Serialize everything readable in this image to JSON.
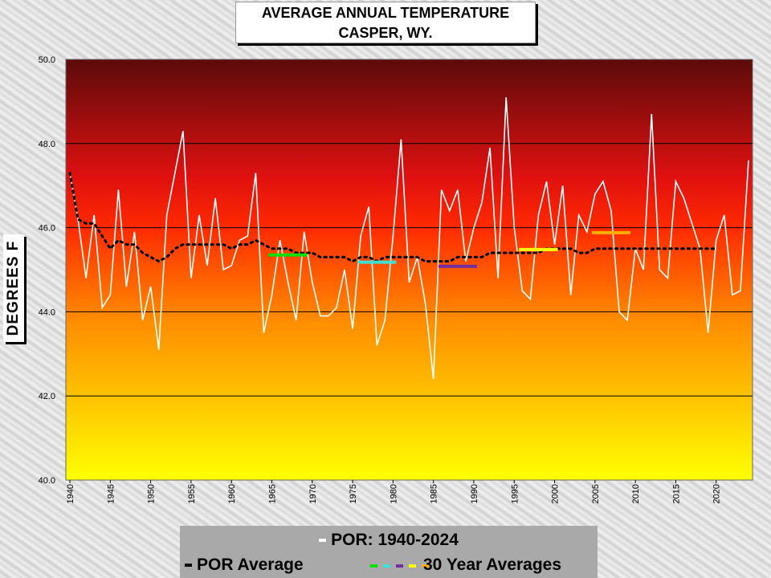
{
  "title_line1": "AVERAGE  ANNUAL  TEMPERATURE",
  "title_line2": "CASPER,  WY.",
  "ylabel": "DEGREES  F",
  "legend": {
    "por_text": "POR: 1940-2024",
    "por_avg_text": "POR Average",
    "avg30_text": "30 Year Averages",
    "avg30_colors": [
      "#00e000",
      "#40e0d0",
      "#7030a0",
      "#ffff00",
      "#ffb000"
    ]
  },
  "chart_data": {
    "type": "line",
    "title": "AVERAGE  ANNUAL  TEMPERATURE\nCASPER,  WY.",
    "ylabel": "DEGREES  F",
    "ylim": [
      40.0,
      50.0
    ],
    "yticks": [
      "40.0",
      "42.0",
      "44.0",
      "46.0",
      "48.0",
      "50.0"
    ],
    "xlim": [
      1940,
      2024
    ],
    "xticks": [
      "1940",
      "1945",
      "1950",
      "1955",
      "1960",
      "1965",
      "1970",
      "1975",
      "1980",
      "1985",
      "1990",
      "1995",
      "2000",
      "2005",
      "2010",
      "2015",
      "2020"
    ],
    "grid": true,
    "background_gradient": [
      "#5c0b0b",
      "#ff1a00",
      "#ff9a00",
      "#ffff00"
    ],
    "annual_series": {
      "color": "#ffffff",
      "years": [
        1940,
        1941,
        1942,
        1943,
        1944,
        1945,
        1946,
        1947,
        1948,
        1949,
        1950,
        1951,
        1952,
        1953,
        1954,
        1955,
        1956,
        1957,
        1958,
        1959,
        1960,
        1961,
        1962,
        1963,
        1964,
        1965,
        1966,
        1967,
        1968,
        1969,
        1970,
        1971,
        1972,
        1973,
        1974,
        1975,
        1976,
        1977,
        1978,
        1979,
        1980,
        1981,
        1982,
        1983,
        1984,
        1985,
        1986,
        1987,
        1988,
        1989,
        1990,
        1991,
        1992,
        1993,
        1994,
        1995,
        1996,
        1997,
        1998,
        1999,
        2000,
        2001,
        2002,
        2003,
        2004,
        2005,
        2006,
        2007,
        2008,
        2009,
        2010,
        2011,
        2012,
        2013,
        2014,
        2015,
        2016,
        2017,
        2018,
        2019,
        2020,
        2021,
        2022,
        2023,
        2024
      ],
      "values": [
        47.3,
        46.2,
        44.8,
        46.3,
        44.1,
        44.4,
        46.9,
        44.6,
        45.9,
        43.8,
        44.6,
        43.1,
        46.3,
        47.3,
        48.3,
        44.8,
        46.3,
        45.1,
        46.7,
        45.0,
        45.1,
        45.7,
        45.8,
        47.3,
        43.5,
        44.4,
        45.7,
        44.7,
        43.8,
        45.9,
        44.7,
        43.9,
        43.9,
        44.1,
        45.0,
        43.6,
        45.8,
        46.5,
        43.2,
        43.8,
        45.8,
        48.1,
        44.7,
        45.3,
        44.2,
        42.4,
        46.9,
        46.4,
        46.9,
        45.2,
        46.0,
        46.6,
        47.9,
        44.8,
        49.1,
        46.0,
        44.5,
        44.3,
        46.3,
        47.1,
        45.6,
        47.0,
        44.4,
        46.3,
        45.9,
        46.8,
        47.1,
        46.4,
        44.0,
        43.8,
        45.5,
        45.0,
        48.7,
        45.0,
        44.8,
        47.1,
        46.7,
        46.1,
        45.5,
        43.5,
        45.7,
        46.3,
        44.4,
        44.5,
        47.6
      ]
    },
    "por_average_series": {
      "color": "#000000",
      "style": "dotted",
      "years": [
        1940,
        1941,
        1942,
        1943,
        1944,
        1945,
        1946,
        1947,
        1948,
        1949,
        1950,
        1951,
        1952,
        1953,
        1954,
        1955,
        1956,
        1957,
        1958,
        1959,
        1960,
        1961,
        1962,
        1963,
        1964,
        1965,
        1966,
        1967,
        1968,
        1969,
        1970,
        1971,
        1972,
        1973,
        1974,
        1975,
        1976,
        1977,
        1978,
        1979,
        1980,
        1981,
        1982,
        1983,
        1984,
        1985,
        1986,
        1987,
        1988,
        1989,
        1990,
        1991,
        1992,
        1993,
        1994,
        1995,
        1996,
        1997,
        1998,
        1999,
        2000,
        2001,
        2002,
        2003,
        2004,
        2005,
        2006,
        2007,
        2008,
        2009,
        2010,
        2011,
        2012,
        2013,
        2014,
        2015,
        2016,
        2017,
        2018,
        2019,
        2020
      ],
      "values": [
        47.3,
        46.2,
        46.1,
        46.1,
        45.8,
        45.5,
        45.7,
        45.6,
        45.6,
        45.4,
        45.3,
        45.2,
        45.3,
        45.5,
        45.6,
        45.6,
        45.6,
        45.6,
        45.6,
        45.6,
        45.5,
        45.6,
        45.6,
        45.7,
        45.6,
        45.5,
        45.5,
        45.5,
        45.4,
        45.4,
        45.4,
        45.3,
        45.3,
        45.3,
        45.3,
        45.2,
        45.3,
        45.3,
        45.2,
        45.3,
        45.3,
        45.3,
        45.3,
        45.3,
        45.2,
        45.2,
        45.2,
        45.2,
        45.3,
        45.3,
        45.3,
        45.3,
        45.4,
        45.4,
        45.4,
        45.4,
        45.4,
        45.4,
        45.4,
        45.5,
        45.5,
        45.5,
        45.5,
        45.4,
        45.4,
        45.5,
        45.5,
        45.5,
        45.5,
        45.5,
        45.5,
        45.5,
        45.5,
        45.5,
        45.5,
        45.5,
        45.5,
        45.5,
        45.5,
        45.5,
        45.5
      ]
    },
    "thirty_year_averages": [
      {
        "start": 1965,
        "end": 1969,
        "value": 45.35,
        "color": "#00e000"
      },
      {
        "start": 1976,
        "end": 1980,
        "value": 45.18,
        "color": "#40e0d0"
      },
      {
        "start": 1986,
        "end": 1990,
        "value": 45.08,
        "color": "#7030a0"
      },
      {
        "start": 1996,
        "end": 2000,
        "value": 45.48,
        "color": "#ffff00"
      },
      {
        "start": 2005,
        "end": 2009,
        "value": 45.88,
        "color": "#ffb000"
      }
    ]
  }
}
